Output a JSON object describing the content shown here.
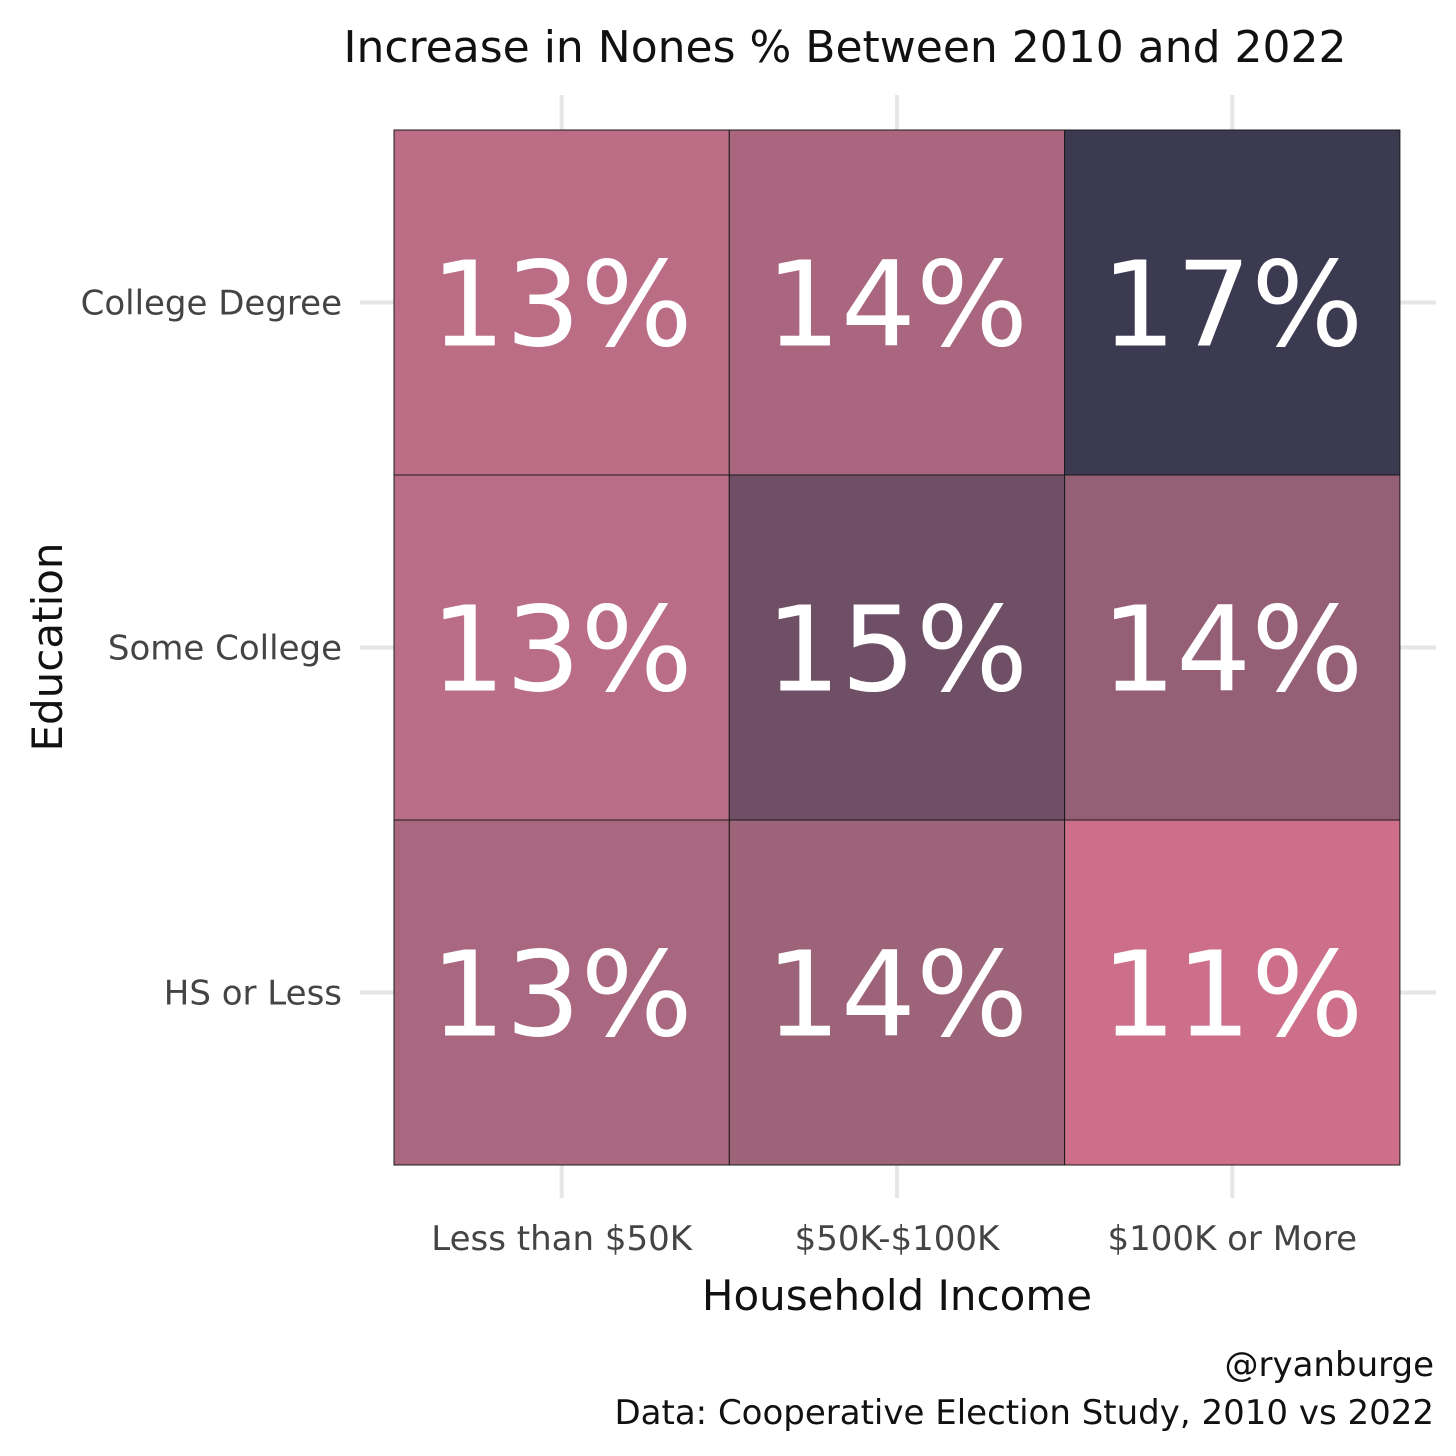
{
  "chart_data": {
    "type": "heatmap",
    "title": "Increase in Nones % Between 2010 and 2022",
    "xlabel": "Household Income",
    "ylabel": "Education",
    "x_categories": [
      "Less than $50K",
      "$50K-$100K",
      "$100K or More"
    ],
    "y_categories": [
      "College Degree",
      "Some College",
      "HS or Less"
    ],
    "cells": [
      {
        "x": "Less than $50K",
        "y": "College Degree",
        "value": 13,
        "label": "13%",
        "color": "#bb6d86"
      },
      {
        "x": "$50K-$100K",
        "y": "College Degree",
        "value": 14,
        "label": "14%",
        "color": "#a9667e"
      },
      {
        "x": "$100K or More",
        "y": "College Degree",
        "value": 17,
        "label": "17%",
        "color": "#3c3a51"
      },
      {
        "x": "Less than $50K",
        "y": "Some College",
        "value": 13,
        "label": "13%",
        "color": "#b96d86"
      },
      {
        "x": "$50K-$100K",
        "y": "Some College",
        "value": 15,
        "label": "15%",
        "color": "#6e4f66"
      },
      {
        "x": "$100K or More",
        "y": "Some College",
        "value": 14,
        "label": "14%",
        "color": "#955f76"
      },
      {
        "x": "Less than $50K",
        "y": "HS or Less",
        "value": 13,
        "label": "13%",
        "color": "#aa6780"
      },
      {
        "x": "$50K-$100K",
        "y": "HS or Less",
        "value": 14,
        "label": "14%",
        "color": "#9d6379"
      },
      {
        "x": "$100K or More",
        "y": "HS or Less",
        "value": 11,
        "label": "11%",
        "color": "#cd6f8b"
      }
    ],
    "grid": true,
    "legend": "none"
  },
  "caption": {
    "author": "@ryanburge",
    "source": "Data: Cooperative Election Study, 2010 vs 2022"
  }
}
